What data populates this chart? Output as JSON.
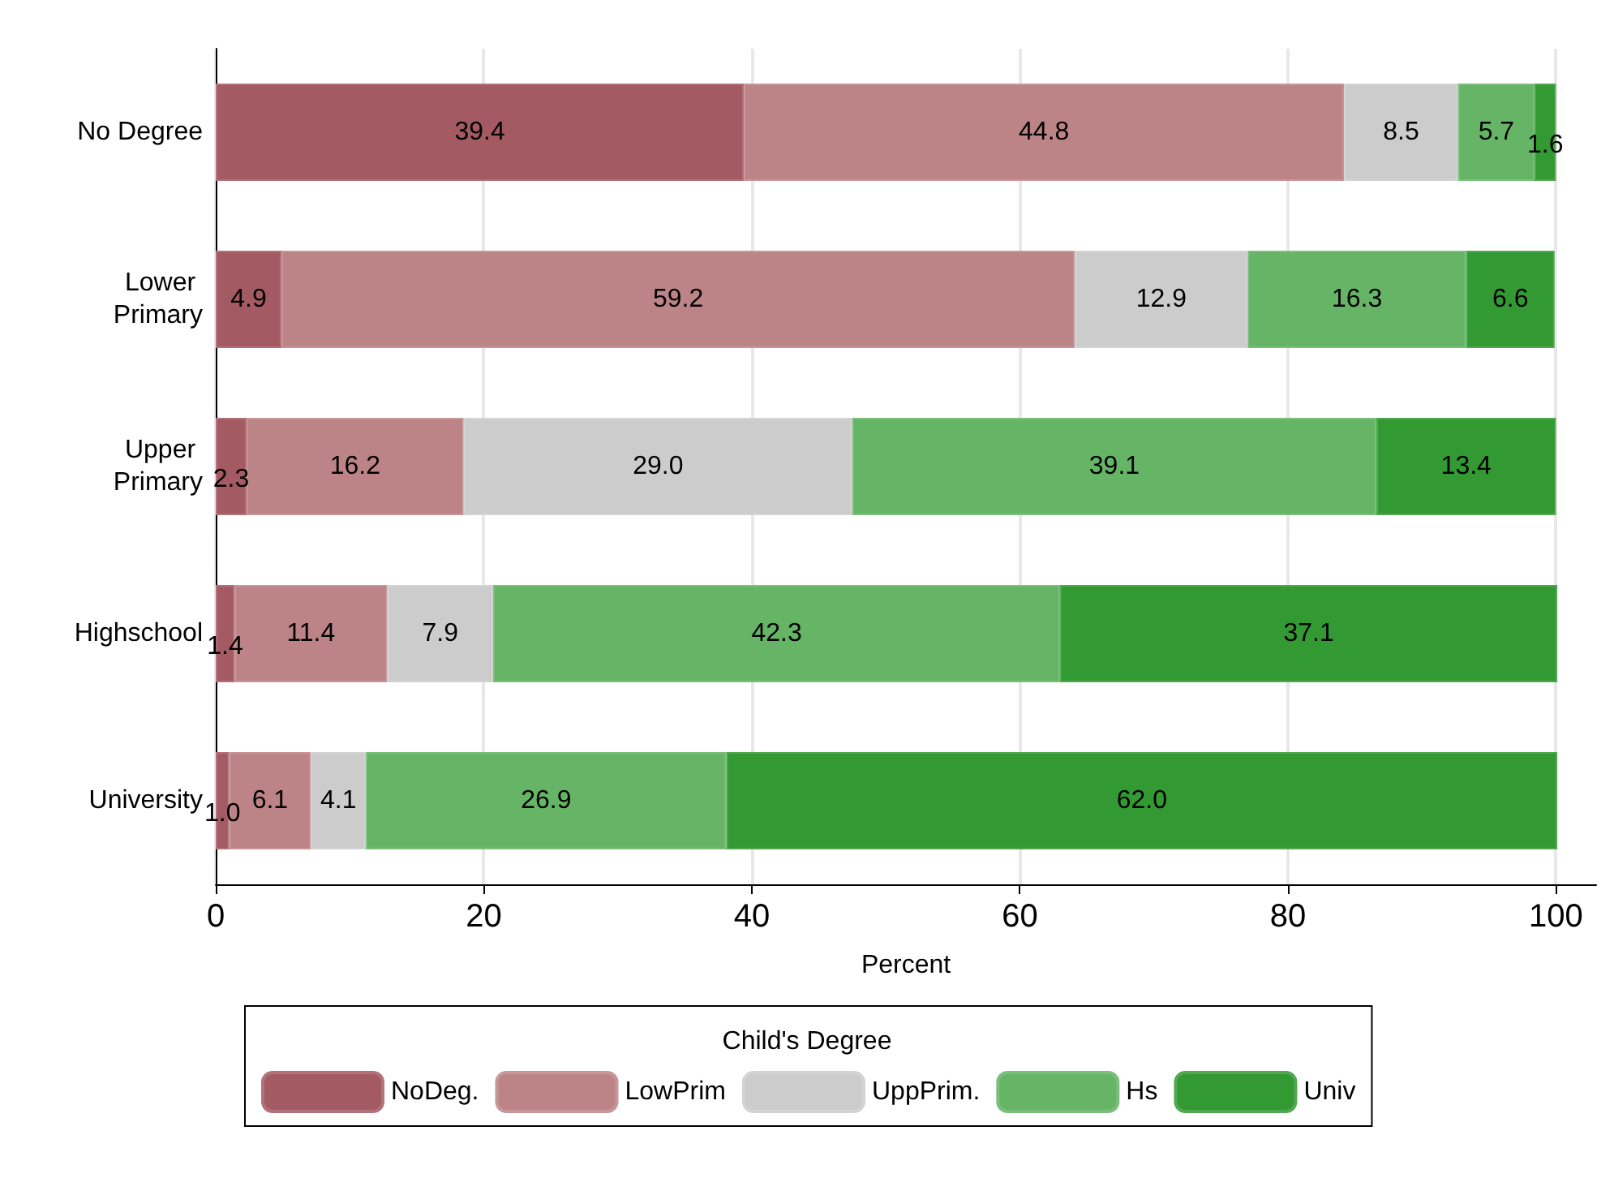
{
  "chart_data": {
    "type": "bar",
    "orientation": "horizontal",
    "stacked": true,
    "categories": [
      "No Degree",
      "Lower Primary",
      "Upper Primary",
      "Highschool",
      "University"
    ],
    "series": [
      {
        "name": "NoDeg.",
        "color": "#a45a62",
        "values": [
          39.4,
          4.9,
          2.3,
          1.4,
          1.0
        ],
        "value_labels": [
          "39.4",
          "4.9",
          "2.3",
          "1.4",
          "1.0"
        ]
      },
      {
        "name": "LowPrim",
        "color": "#bc8486",
        "values": [
          44.8,
          59.2,
          16.2,
          11.4,
          6.1
        ],
        "value_labels": [
          "44.8",
          "59.2",
          "16.2",
          "11.4",
          "6.1"
        ]
      },
      {
        "name": "UppPrim.",
        "color": "#cccccc",
        "values": [
          8.5,
          12.9,
          29.0,
          7.9,
          4.1
        ],
        "value_labels": [
          "8.5",
          "12.9",
          "29.0",
          "7.9",
          "4.1"
        ]
      },
      {
        "name": "Hs",
        "color": "#66b466",
        "values": [
          5.7,
          16.3,
          39.1,
          42.3,
          26.9
        ],
        "value_labels": [
          "5.7",
          "16.3",
          "39.1",
          "42.3",
          "26.9"
        ]
      },
      {
        "name": "Univ",
        "color": "#339933",
        "values": [
          1.6,
          6.6,
          13.4,
          37.1,
          62.0
        ],
        "value_labels": [
          "1.6",
          "6.6",
          "13.4",
          "37.1",
          "62.0"
        ]
      }
    ],
    "xlabel": "Percent",
    "xlim": [
      0,
      103
    ],
    "xticks": [
      0,
      20,
      40,
      60,
      80,
      100
    ],
    "grid": "x",
    "legend": "bottom",
    "legend_title": "Child's Degree"
  }
}
